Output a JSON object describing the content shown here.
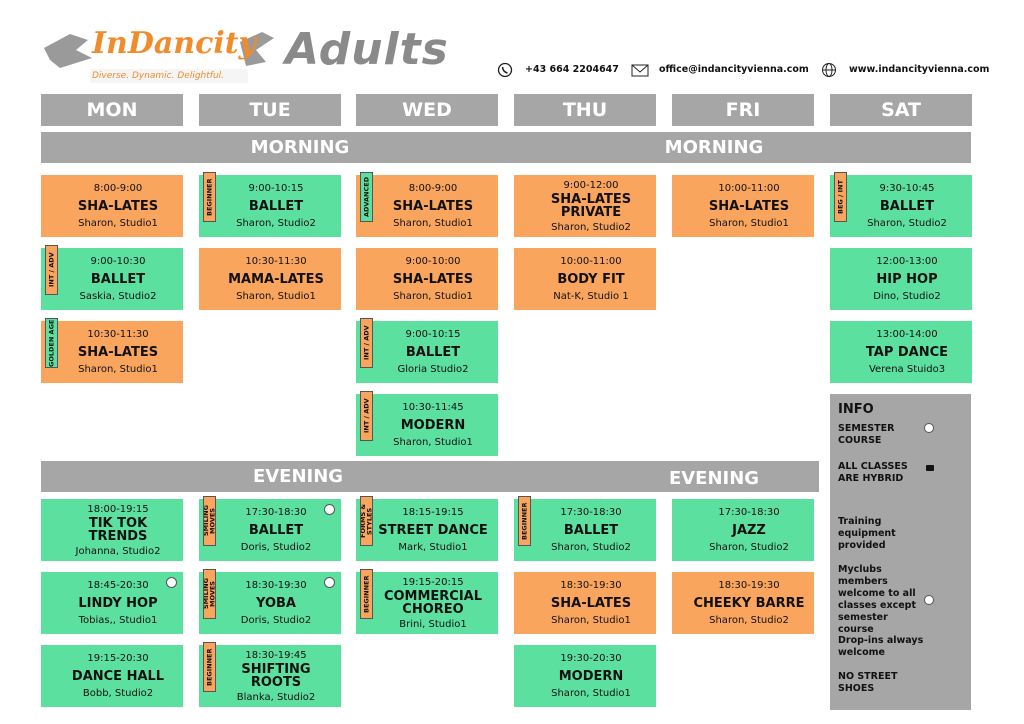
{
  "header": {
    "logo": "InDancity",
    "tagline": "Diverse. Dynamic. Delightful.",
    "title": "Adults",
    "phone": "+43 664 2204647",
    "email": "office@indancityvienna.com",
    "web": "www.indancityvienna.com"
  },
  "bands": {
    "morning": [
      "MORNING",
      "MORNING"
    ],
    "evening": [
      "EVENING",
      "EVENING"
    ]
  },
  "days": [
    {
      "name": "MON",
      "morning": [
        {
          "time": "8:00-9:00",
          "title": "SHA-LATES",
          "place": "Sharon, Studio1",
          "color": "#f9a55d"
        },
        {
          "time": "9:00-10:30",
          "title": "BALLET",
          "place": "Saskia, Studio2",
          "color": "#5ce0a0",
          "ribbon": "INT / ADV"
        },
        {
          "time": "10:30-11:30",
          "title": "SHA-LATES",
          "place": "Sharon, Studio1",
          "color": "#f9a55d",
          "ribbon": "GOLDEN AGE"
        }
      ],
      "evening": [
        {
          "time": "18:00-19:15",
          "title": "TIK TOK TRENDS",
          "place": "Johanna, Studio2",
          "color": "#5ce0a0"
        },
        {
          "time": "18:45-20:30",
          "title": "LINDY HOP",
          "place": "Tobias,, Studio1",
          "color": "#5ce0a0",
          "semester": true
        },
        {
          "time": "19:15-20:30",
          "title": "DANCE HALL",
          "place": "Bobb, Studio2",
          "color": "#5ce0a0"
        }
      ]
    },
    {
      "name": "TUE",
      "morning": [
        {
          "time": "9:00-10:15",
          "title": "BALLET",
          "place": "Sharon, Studio2",
          "color": "#5ce0a0",
          "ribbon": "BEGINNER"
        },
        {
          "time": "10:30-11:30",
          "title": "MAMA-LATES",
          "place": "Sharon, Studio1",
          "color": "#f9a55d"
        }
      ],
      "evening": [
        {
          "time": "17:30-18:30",
          "title": "BALLET",
          "place": "Doris, Studio2",
          "color": "#5ce0a0",
          "ribbon": "SMILING MOVES",
          "semester": true
        },
        {
          "time": "18:30-19:30",
          "title": "YOBA",
          "place": "Doris, Studio2",
          "color": "#5ce0a0",
          "ribbon": "SMILING MOVES",
          "semester": true
        },
        {
          "time": "18:30-19:45",
          "title": "SHIFTING ROOTS",
          "place": "Blanka, Studio2",
          "color": "#5ce0a0",
          "ribbon": "BEGINNER"
        }
      ]
    },
    {
      "name": "WED",
      "morning": [
        {
          "time": "8:00-9:00",
          "title": "SHA-LATES",
          "place": "Sharon, Studio1",
          "color": "#f9a55d",
          "ribbon": "ADVANCED"
        },
        {
          "time": "9:00-10:00",
          "title": "SHA-LATES",
          "place": "Sharon, Studio1",
          "color": "#f9a55d"
        },
        {
          "time": "9:00-10:15",
          "title": "BALLET",
          "place": "Gloria Studio2",
          "color": "#5ce0a0",
          "ribbon": "INT / ADV"
        },
        {
          "time": "10:30-11:45",
          "title": "MODERN",
          "place": "Sharon, Studio1",
          "color": "#5ce0a0",
          "ribbon": "INT / ADV"
        }
      ],
      "evening": [
        {
          "time": "18:15-19:15",
          "title": "STREET DANCE",
          "place": "Mark, Studio1",
          "color": "#5ce0a0",
          "ribbon": "FORMS & STYLES"
        },
        {
          "time": "19:15-20:15",
          "title": "COMMERCIAL CHOREO",
          "place": "Brini, Studio1",
          "color": "#5ce0a0",
          "ribbon": "BEGINNER"
        }
      ]
    },
    {
      "name": "THU",
      "morning": [
        {
          "time": "9:00-12:00",
          "title": "SHA-LATES PRIVATE",
          "place": "Sharon, Studio2",
          "color": "#f9a55d"
        },
        {
          "time": "10:00-11:00",
          "title": "BODY FIT",
          "place": "Nat-K, Studio 1",
          "color": "#f9a55d"
        }
      ],
      "evening": [
        {
          "time": "17:30-18:30",
          "title": "BALLET",
          "place": "Sharon, Studio2",
          "color": "#5ce0a0",
          "ribbon": "BEGINNER"
        },
        {
          "time": "18:30-19:30",
          "title": "SHA-LATES",
          "place": "Sharon, Studio1",
          "color": "#f9a55d"
        },
        {
          "time": "19:30-20:30",
          "title": "MODERN",
          "place": "Sharon, Studio1",
          "color": "#5ce0a0"
        }
      ]
    },
    {
      "name": "FRI",
      "morning": [
        {
          "time": "10:00-11:00",
          "title": "SHA-LATES",
          "place": "Sharon, Studio1",
          "color": "#f9a55d"
        }
      ],
      "evening": [
        {
          "time": "17:30-18:30",
          "title": "JAZZ",
          "place": "Sharon, Studio2",
          "color": "#5ce0a0"
        },
        {
          "time": "18:30-19:30",
          "title": "CHEEKY BARRE",
          "place": "Sharon, Studio2",
          "color": "#f9a55d"
        }
      ]
    },
    {
      "name": "SAT",
      "morning": [
        {
          "time": "9:30-10:45",
          "title": "BALLET",
          "place": "Sharon, Studio2",
          "color": "#5ce0a0",
          "ribbon": "BEG / INT"
        },
        {
          "time": "12:00-13:00",
          "title": "HIP HOP",
          "place": "Dino, Studio2",
          "color": "#5ce0a0"
        },
        {
          "time": "13:00-14:00",
          "title": "TAP DANCE",
          "place": "Verena Stuido3",
          "color": "#5ce0a0"
        }
      ],
      "evening": []
    }
  ],
  "info": {
    "title": "INFO",
    "items": [
      {
        "text": "SEMESTER COURSE",
        "icon": "circle"
      },
      {
        "text": "ALL CLASSES ARE HYBRID",
        "icon": "camera"
      },
      {
        "text": "Training equipment provided"
      },
      {
        "text": "Myclubs members welcome to all classes except semester course",
        "icon": "circle"
      },
      {
        "text": "Drop-ins always welcome"
      },
      {
        "text": "NO STREET SHOES"
      }
    ]
  }
}
